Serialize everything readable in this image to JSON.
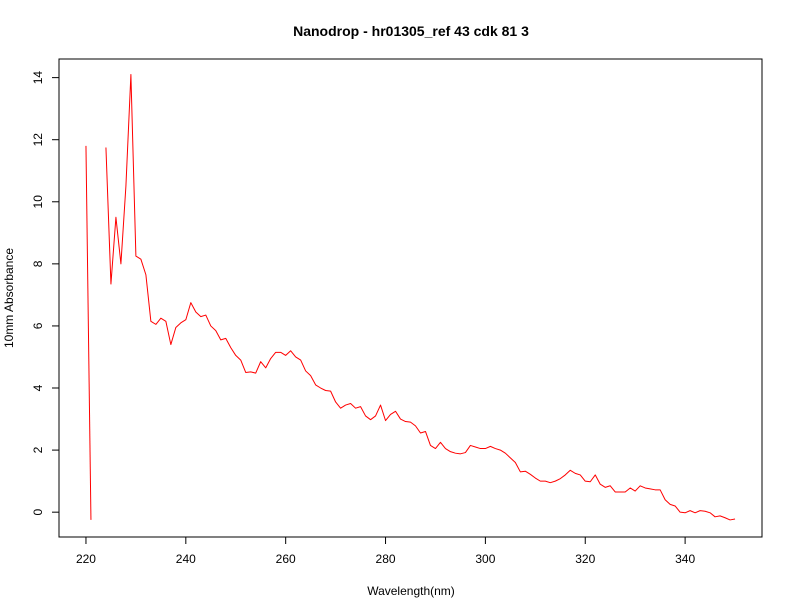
{
  "chart_data": {
    "type": "line",
    "title": "Nanodrop - hr01305_ref 43 cdk 81  3",
    "xlabel": "Wavelength(nm)",
    "ylabel": "10mm Absorbance",
    "xlim": [
      214.6,
      355.4
    ],
    "ylim": [
      -0.8,
      14.6
    ],
    "xticks": [
      220,
      240,
      260,
      280,
      300,
      320,
      340
    ],
    "yticks": [
      0,
      2,
      4,
      6,
      8,
      10,
      12,
      14
    ],
    "grid": false,
    "legend": "none",
    "line_color": "#ff0000",
    "series": [
      {
        "x": [
          220,
          221
        ],
        "y": [
          11.8,
          -0.25
        ]
      },
      {
        "x": [
          224,
          225,
          226,
          227,
          228,
          229,
          230,
          231,
          232,
          233,
          234,
          235,
          236,
          237,
          238,
          239,
          240,
          241,
          242,
          243,
          244,
          245,
          246,
          247,
          248,
          249,
          250,
          251,
          252,
          253,
          254,
          255,
          256,
          257,
          258,
          259,
          260,
          261,
          262,
          263,
          264,
          265,
          266,
          267,
          268,
          269,
          270,
          271,
          272,
          273,
          274,
          275,
          276,
          277,
          278,
          279,
          280,
          281,
          282,
          283,
          284,
          285,
          286,
          287,
          288,
          289,
          290,
          291,
          292,
          293,
          294,
          295,
          296,
          297,
          298,
          299,
          300,
          301,
          302,
          303,
          304,
          305,
          306,
          307,
          308,
          309,
          310,
          311,
          312,
          313,
          314,
          315,
          316,
          317,
          318,
          319,
          320,
          321,
          322,
          323,
          324,
          325,
          326,
          327,
          328,
          329,
          330,
          331,
          332,
          333,
          334,
          335,
          336,
          337,
          338,
          339,
          340,
          341,
          342,
          343,
          344,
          345,
          346,
          347,
          348,
          349,
          350
        ],
        "y": [
          11.75,
          7.35,
          9.5,
          8.0,
          10.5,
          14.1,
          8.25,
          8.15,
          7.65,
          6.15,
          6.05,
          6.25,
          6.15,
          5.4,
          5.95,
          6.1,
          6.2,
          6.75,
          6.45,
          6.3,
          6.35,
          6.0,
          5.85,
          5.55,
          5.6,
          5.3,
          5.05,
          4.9,
          4.5,
          4.52,
          4.48,
          4.85,
          4.65,
          4.95,
          5.15,
          5.15,
          5.05,
          5.2,
          5.0,
          4.9,
          4.55,
          4.4,
          4.1,
          4.0,
          3.92,
          3.9,
          3.55,
          3.35,
          3.45,
          3.5,
          3.35,
          3.4,
          3.1,
          2.98,
          3.1,
          3.45,
          2.95,
          3.15,
          3.25,
          3.0,
          2.92,
          2.9,
          2.78,
          2.55,
          2.6,
          2.15,
          2.05,
          2.25,
          2.05,
          1.95,
          1.9,
          1.88,
          1.92,
          2.15,
          2.1,
          2.05,
          2.05,
          2.12,
          2.05,
          2.0,
          1.9,
          1.75,
          1.6,
          1.3,
          1.32,
          1.22,
          1.1,
          1.0,
          1.0,
          0.95,
          1.0,
          1.08,
          1.2,
          1.35,
          1.25,
          1.2,
          1.0,
          0.98,
          1.2,
          0.9,
          0.8,
          0.85,
          0.65,
          0.65,
          0.65,
          0.78,
          0.68,
          0.85,
          0.78,
          0.75,
          0.72,
          0.72,
          0.4,
          0.25,
          0.2,
          0.0,
          -0.02,
          0.05,
          -0.02,
          0.05,
          0.03,
          -0.02,
          -0.15,
          -0.12,
          -0.18,
          -0.25,
          -0.22
        ]
      }
    ]
  }
}
